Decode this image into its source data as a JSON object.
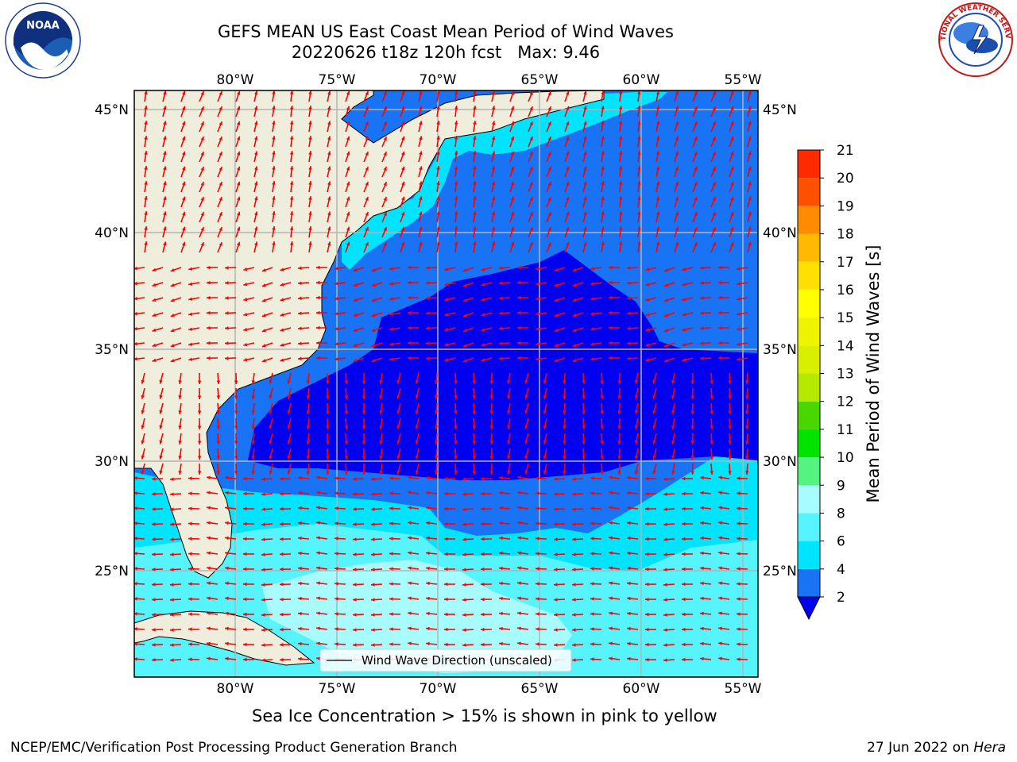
{
  "title": {
    "line1": "GEFS MEAN US East Coast Mean Period of Wind Waves",
    "line2": "20220626 t18z 120h fcst   Max: 9.46"
  },
  "logos": {
    "left": {
      "icon": "noaa-logo",
      "text": "NOAA"
    },
    "right": {
      "icon": "nws-logo",
      "text": "NATIONAL WEATHER SERVICE"
    }
  },
  "map": {
    "lon_labels": [
      "80°W",
      "75°W",
      "70°W",
      "65°W",
      "60°W",
      "55°W"
    ],
    "lat_labels": [
      "45°N",
      "40°N",
      "35°N",
      "30°N",
      "25°N"
    ],
    "legend_label": "Wind Wave Direction (unscaled)",
    "colors": {
      "land": "#efeedc",
      "wave_2_4": "#1874f4",
      "wave_lt_2": "#0000f0",
      "wave_4_6": "#00e4ff",
      "wave_6_8": "#55f4ff",
      "wave_8_9": "#a6fcff",
      "arrow": "#ff0000",
      "grid": "#b3b3b3"
    }
  },
  "colorbar": {
    "label": "Mean Period of Wind Waves [s]",
    "ticks": [
      "2",
      "4",
      "6",
      "8",
      "9",
      "10",
      "11",
      "12",
      "13",
      "14",
      "15",
      "16",
      "17",
      "18",
      "19",
      "20",
      "21"
    ],
    "colors": [
      "#1874f4",
      "#00e4ff",
      "#55f4ff",
      "#a6fcff",
      "#55f481",
      "#00e400",
      "#4ad600",
      "#b6e900",
      "#d8f000",
      "#eef400",
      "#ffff00",
      "#ffe000",
      "#ffba00",
      "#ff8c00",
      "#ff5000",
      "#ff2a00",
      "#ff0000"
    ],
    "extend_color": "#0000f0"
  },
  "footer": {
    "ice_note": "Sea Ice Concentration > 15% is shown in pink to yellow",
    "left": "NCEP/EMC/Verification Post Processing Product Generation Branch",
    "right_date": "27 Jun 2022 on ",
    "right_host": "Hera"
  }
}
